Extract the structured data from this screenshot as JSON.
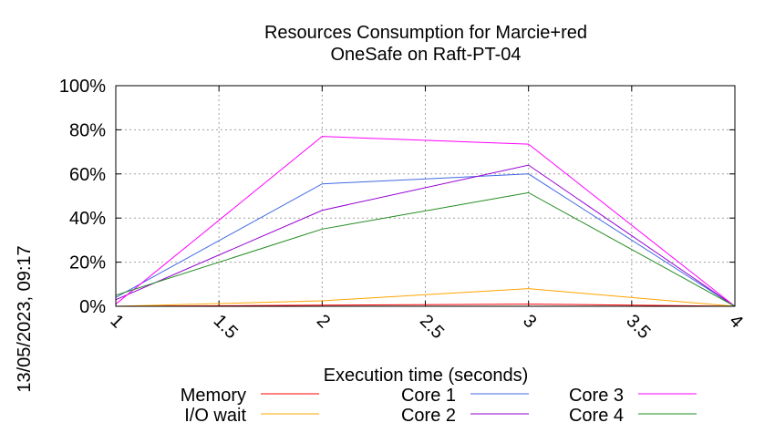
{
  "chart_data": {
    "type": "line",
    "title": "Resources Consumption for Marcie+red",
    "subtitle": "OneSafe on Raft-PT-04",
    "xlabel": "Execution time (seconds)",
    "ylabel": "",
    "timestamp": "13/05/2023, 09:17",
    "x": [
      1,
      2,
      3,
      4
    ],
    "xlim": [
      1,
      4
    ],
    "ylim": [
      0,
      100
    ],
    "xticks": [
      "1",
      "1.5",
      "2",
      "2.5",
      "3",
      "3.5",
      "4"
    ],
    "yticks": [
      "0%",
      "20%",
      "40%",
      "60%",
      "80%",
      "100%"
    ],
    "grid": true,
    "legend_position": "bottom",
    "series": [
      {
        "name": "Memory",
        "color": "#ff0000",
        "values": [
          0,
          0.5,
          1,
          0
        ]
      },
      {
        "name": "I/O wait",
        "color": "#ffa500",
        "values": [
          0,
          2.5,
          8,
          0
        ]
      },
      {
        "name": "Core 1",
        "color": "#4169e1",
        "values": [
          4,
          55.5,
          60,
          0
        ]
      },
      {
        "name": "Core 2",
        "color": "#9400d3",
        "values": [
          3,
          43.5,
          64,
          0
        ]
      },
      {
        "name": "Core 3",
        "color": "#ff00ff",
        "values": [
          1,
          77,
          73.5,
          0
        ]
      },
      {
        "name": "Core 4",
        "color": "#228b22",
        "values": [
          5,
          35,
          51.5,
          0
        ]
      }
    ]
  }
}
